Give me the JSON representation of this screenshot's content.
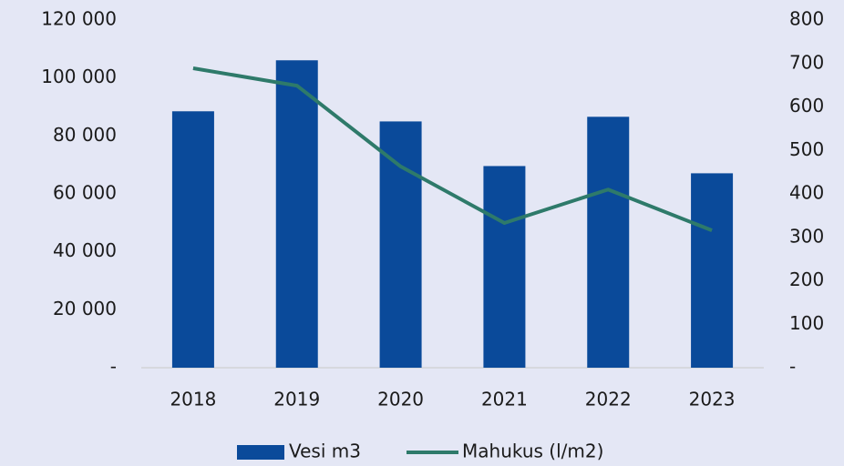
{
  "chart_data": {
    "type": "bar",
    "categories": [
      "2018",
      "2019",
      "2020",
      "2021",
      "2022",
      "2023"
    ],
    "series": [
      {
        "name": "Vesi m3",
        "type": "bar",
        "axis": "y",
        "color": "#0a4a9a",
        "values": [
          88500,
          106100,
          85000,
          69600,
          86600,
          67100
        ]
      },
      {
        "name": "Mahukus (l/m2)",
        "type": "line",
        "axis": "y2",
        "color": "#2e7a6a",
        "values": [
          689,
          649,
          463,
          333,
          410,
          316
        ]
      }
    ],
    "ylim": [
      0,
      120000
    ],
    "yticks": [
      {
        "value": 0,
        "label": "-"
      },
      {
        "value": 20000,
        "label": "20 000"
      },
      {
        "value": 40000,
        "label": "40 000"
      },
      {
        "value": 60000,
        "label": "60 000"
      },
      {
        "value": 80000,
        "label": "80 000"
      },
      {
        "value": 100000,
        "label": "100 000"
      },
      {
        "value": 120000,
        "label": "120 000"
      }
    ],
    "y2lim": [
      0,
      800
    ],
    "y2ticks": [
      {
        "value": 0,
        "label": "-"
      },
      100,
      200,
      300,
      400,
      500,
      600,
      700,
      800
    ],
    "grid": false,
    "legend": "bottom"
  }
}
